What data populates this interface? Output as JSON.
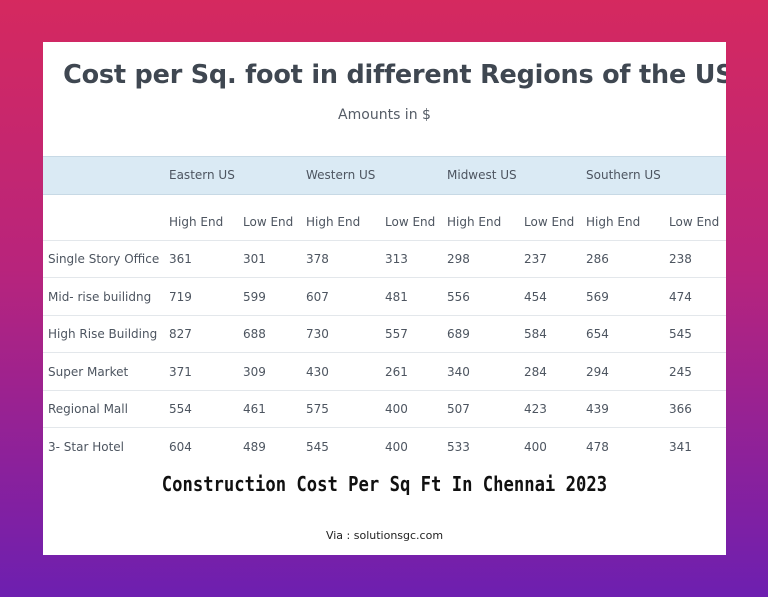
{
  "chart_data": {
    "type": "table",
    "title": "Cost per Sq. foot in different Regions of the USA",
    "subtitle": "Amounts in $",
    "regions": [
      "Eastern US",
      "Western US",
      "Midwest US",
      "Southern US"
    ],
    "columns": [
      "High End",
      "Low End",
      "High End",
      "Low End",
      "High End",
      "Low End",
      "High End",
      "Low End"
    ],
    "rows": [
      {
        "label": "Single Story Office",
        "values": [
          361,
          301,
          378,
          313,
          298,
          237,
          286,
          238
        ]
      },
      {
        "label": "Mid- rise builidng",
        "values": [
          719,
          599,
          607,
          481,
          556,
          454,
          569,
          474
        ]
      },
      {
        "label": "High Rise Building",
        "values": [
          827,
          688,
          730,
          557,
          689,
          584,
          654,
          545
        ]
      },
      {
        "label": "Super Market",
        "values": [
          371,
          309,
          430,
          261,
          340,
          284,
          294,
          245
        ]
      },
      {
        "label": "Regional Mall",
        "values": [
          554,
          461,
          575,
          400,
          507,
          423,
          439,
          366
        ]
      },
      {
        "label": "3- Star Hotel",
        "values": [
          604,
          489,
          545,
          400,
          533,
          400,
          478,
          341
        ]
      }
    ]
  },
  "caption": "Construction Cost Per Sq Ft In Chennai 2023",
  "via": "Via : solutionsgc.com"
}
